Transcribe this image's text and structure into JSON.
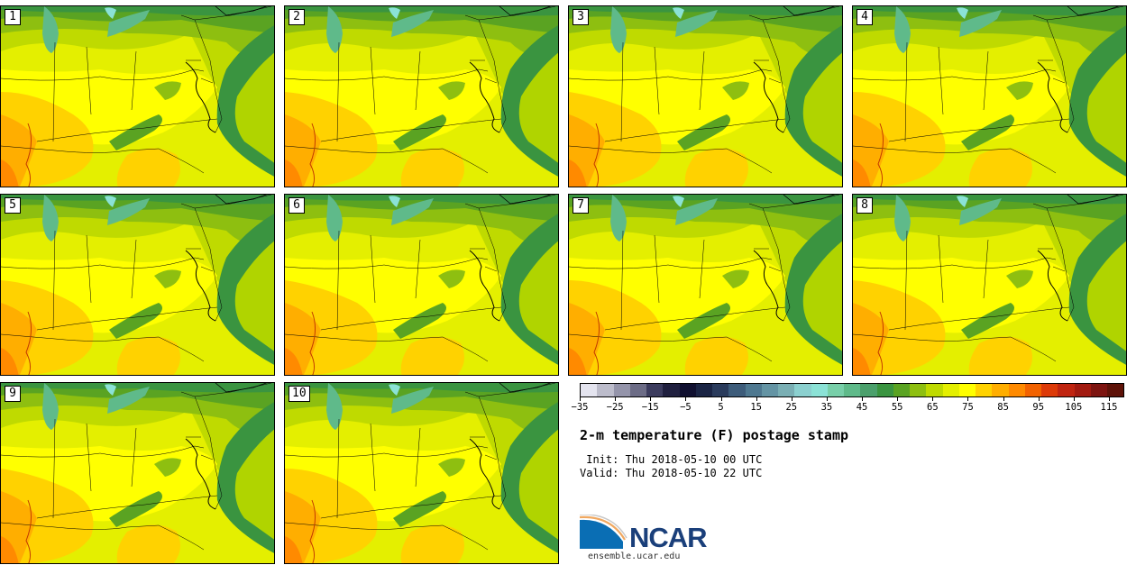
{
  "panels": [
    {
      "label": "1"
    },
    {
      "label": "2"
    },
    {
      "label": "3"
    },
    {
      "label": "4"
    },
    {
      "label": "5"
    },
    {
      "label": "6"
    },
    {
      "label": "7"
    },
    {
      "label": "8"
    },
    {
      "label": "9"
    },
    {
      "label": "10"
    }
  ],
  "colorbar": {
    "colors": [
      "#e4e4ef",
      "#bcbccb",
      "#9494aa",
      "#6c6c86",
      "#3c3c5e",
      "#20203f",
      "#101030",
      "#1a2444",
      "#2a3b5c",
      "#3d5c7a",
      "#4e7890",
      "#6494a4",
      "#7aafb4",
      "#8bd0cf",
      "#8be2d6",
      "#78cfa9",
      "#5fba8a",
      "#4ba06c",
      "#3a9440",
      "#5aa322",
      "#8ebf10",
      "#bfda00",
      "#e4ef00",
      "#ffff00",
      "#ffd200",
      "#ffae00",
      "#ff8a00",
      "#f26200",
      "#dd3a08",
      "#c02410",
      "#a21a10",
      "#7d1410",
      "#5e1208"
    ],
    "tick_labels": [
      "−35",
      "−25",
      "−15",
      "−5",
      "5",
      "15",
      "25",
      "35",
      "45",
      "55",
      "65",
      "75",
      "85",
      "95",
      "105",
      "115"
    ]
  },
  "title": "2-m temperature (F) postage stamp",
  "init_text": " Init: Thu 2018-05-10 00 UTC",
  "valid_text": "Valid: Thu 2018-05-10 22 UTC",
  "logo": {
    "text": "NCAR",
    "site": "ensemble.ucar.edu",
    "brand_blue": "#0a6eb4",
    "brand_dark": "#1a3f7a"
  },
  "field_colors": {
    "cool": "#3a9440",
    "cooler": "#4ba06c",
    "lake": "#5fba8a",
    "lake_light": "#8be2d6",
    "mid_green": "#5aa322",
    "light_green": "#8ebf10",
    "yellow_green": "#bfda00",
    "pale": "#e4ef00",
    "yellow": "#ffff00",
    "gold": "#ffd200",
    "orange": "#ffae00",
    "dark_orange": "#ff8a00",
    "ocean": "#b0d400",
    "ocean_south": "#dfee00"
  }
}
